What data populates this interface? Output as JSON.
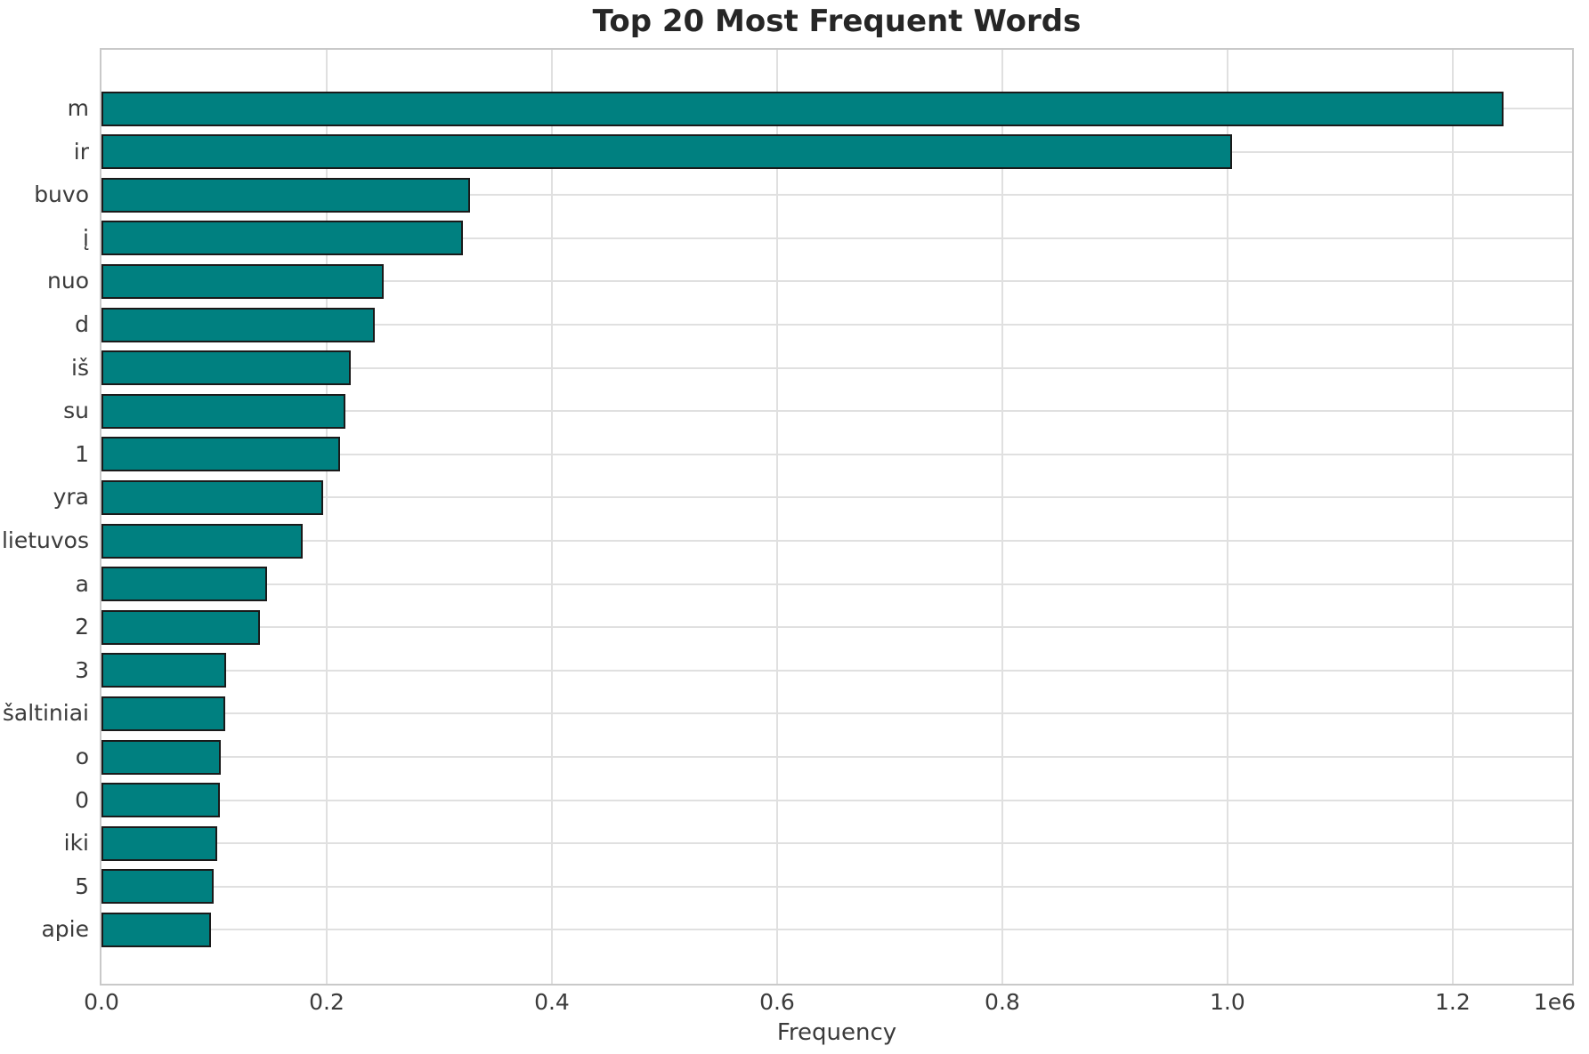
{
  "chart_data": {
    "type": "bar",
    "orientation": "horizontal",
    "title": "Top 20 Most Frequent Words",
    "xlabel": "Frequency",
    "ylabel": "",
    "categories": [
      "m",
      "ir",
      "buvo",
      "į",
      "nuo",
      "d",
      "iš",
      "su",
      "1",
      "yra",
      "lietuvos",
      "a",
      "2",
      "3",
      "šaltiniai",
      "o",
      "0",
      "iki",
      "5",
      "apie"
    ],
    "values": [
      1245000,
      1004000,
      327000,
      321000,
      251000,
      243000,
      221000,
      217000,
      212000,
      197000,
      179000,
      147000,
      141000,
      111000,
      110000,
      106000,
      105000,
      103000,
      100000,
      97000
    ],
    "xlim": [
      0,
      1306000
    ],
    "x_ticks": [
      0,
      200000,
      400000,
      600000,
      800000,
      1000000,
      1200000
    ],
    "x_tick_labels": [
      "0.0",
      "0.2",
      "0.4",
      "0.6",
      "0.8",
      "1.0",
      "1.2"
    ],
    "offset_text": "1e6",
    "grid": true,
    "legend": "none",
    "colors": {
      "bar_fill": "#008080",
      "bar_edge": "#1a1a1a",
      "grid": "#e0e0e0",
      "spine": "#c9c9c9",
      "title_text": "#262626",
      "tick_text": "#3b3b3b"
    }
  }
}
